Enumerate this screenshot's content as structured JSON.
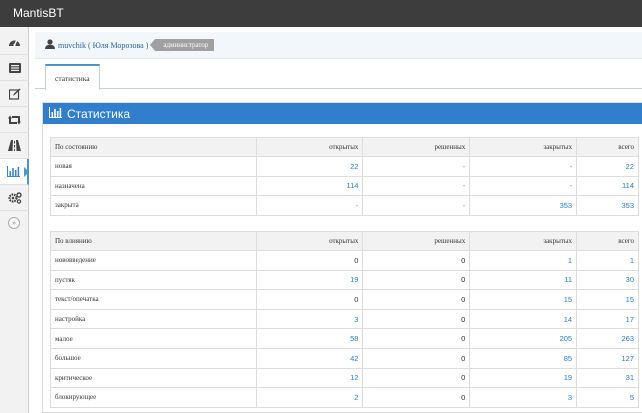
{
  "app": {
    "title": "MantisBT"
  },
  "sidebar": {
    "items": [
      {
        "icon": "dashboard-icon",
        "active": false
      },
      {
        "icon": "list-icon",
        "active": false
      },
      {
        "icon": "edit-icon",
        "active": false
      },
      {
        "icon": "retweet-icon",
        "active": false
      },
      {
        "icon": "road-icon",
        "active": false
      },
      {
        "icon": "bar-chart-icon",
        "active": true
      },
      {
        "icon": "cogs-icon",
        "active": false
      }
    ],
    "collapse_icon": "double-angle-right-icon"
  },
  "breadcrumb": {
    "user": "muvchik ( Юля Морозова )",
    "role": "администратор"
  },
  "tabs": [
    {
      "label": "статистика",
      "active": true
    }
  ],
  "widget": {
    "title": "Статистика",
    "icon": "bar-chart-icon"
  },
  "colors": {
    "accent": "#307ecc",
    "link": "#2a7fc9",
    "topbar": "#3d3d3d"
  },
  "status_table": {
    "headers": [
      "По состоянию",
      "открытых",
      "решенных",
      "закрытых",
      "всего"
    ],
    "rows": [
      {
        "label": "новая",
        "open": "22",
        "resolved": "-",
        "closed": "-",
        "total": "22"
      },
      {
        "label": "назначена",
        "open": "114",
        "resolved": "-",
        "closed": "-",
        "total": "114"
      },
      {
        "label": "закрыта",
        "open": "-",
        "resolved": "-",
        "closed": "353",
        "total": "353"
      }
    ]
  },
  "severity_table": {
    "headers": [
      "По влиянию",
      "открытых",
      "решенных",
      "закрытых",
      "всего"
    ],
    "rows": [
      {
        "label": "нововведение",
        "open": "0",
        "resolved": "0",
        "closed": "1",
        "total": "1"
      },
      {
        "label": "пустяк",
        "open": "19",
        "resolved": "0",
        "closed": "11",
        "total": "30"
      },
      {
        "label": "текст/опечатка",
        "open": "0",
        "resolved": "0",
        "closed": "15",
        "total": "15"
      },
      {
        "label": "настройка",
        "open": "3",
        "resolved": "0",
        "closed": "14",
        "total": "17"
      },
      {
        "label": "малое",
        "open": "58",
        "resolved": "0",
        "closed": "205",
        "total": "263"
      },
      {
        "label": "большое",
        "open": "42",
        "resolved": "0",
        "closed": "85",
        "total": "127"
      },
      {
        "label": "критическое",
        "open": "12",
        "resolved": "0",
        "closed": "19",
        "total": "31"
      },
      {
        "label": "блокирующее",
        "open": "2",
        "resolved": "0",
        "closed": "3",
        "total": "5"
      }
    ]
  }
}
